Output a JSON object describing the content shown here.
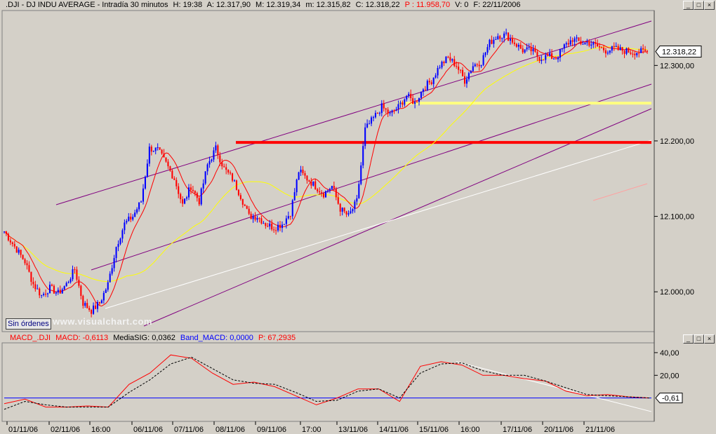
{
  "header": {
    "symbol": ".DJI - DJ INDU AVERAGE - Intradía 30 minutos",
    "h": "H: 19:38",
    "a": "A: 12.317,90",
    "m": "M: 12.319,34",
    "mm": "m: 12.315,82",
    "c": "C: 12.318,22",
    "p": "P : 11.958,70",
    "v": "V: 0",
    "f": "F: 22/11/2006"
  },
  "macd_header": {
    "name": "MACD_.DJI",
    "macd": "MACD: -0,6113",
    "signal": "MediaSIG: 0,0362",
    "band": "Band_MACD: 0,0000",
    "p": "P: 67,2935"
  },
  "window_buttons": [
    "_",
    "□",
    "×"
  ],
  "order_button": "Sin órdenes",
  "watermark": "www.visualchart.com",
  "colors": {
    "background": "#d4d0c8",
    "bull_candle": "#0000ff",
    "bear_candle": "#ff0000",
    "ma_fast": "#ff0000",
    "ma_slow": "#ffff00",
    "channel": "#800080",
    "support": "#ff0000",
    "resistance": "#ffff80",
    "trendline": "#ffffff"
  },
  "chart_data": [
    {
      "type": "line",
      "title": "",
      "series_kind": "candlestick 30 min",
      "ylim": [
        11950,
        12370
      ],
      "y_ticks": [
        12000,
        12100,
        12200,
        12300
      ],
      "y_tick_labels": [
        "12.000,00",
        "12.100,00",
        "12.200,00",
        "12.300,00"
      ],
      "last_price_label": "12.318,22",
      "x_tick_labels": [
        "01/11/06",
        "02/11/06",
        "16:00",
        "06/11/06",
        "07/11/06",
        "08/11/06",
        "09/11/06",
        "17:00",
        "13/11/06",
        "14/11/06",
        "15/11/06",
        "16:00",
        "17/11/06",
        "20/11/06",
        "21/11/06"
      ],
      "close_path": {
        "bar_index": [
          0,
          5,
          10,
          14,
          18,
          22,
          26,
          30,
          34,
          38,
          42,
          46,
          50,
          54,
          58,
          62,
          66,
          70,
          74,
          78,
          82,
          86,
          90,
          94,
          98,
          102,
          106,
          110,
          114,
          118,
          122,
          126,
          130,
          134,
          138,
          142,
          146,
          150,
          154,
          158,
          162,
          166,
          170,
          174,
          178,
          182,
          186,
          190,
          194,
          198,
          202,
          206,
          210,
          214,
          218,
          222,
          226,
          230,
          234,
          238,
          242,
          246,
          250,
          254,
          258,
          262,
          266,
          270,
          274,
          278,
          282,
          286,
          290,
          294,
          298,
          302,
          306,
          310
        ],
        "close": [
          12080,
          12060,
          12040,
          12010,
          11995,
          12005,
          11998,
          12010,
          12030,
          11985,
          11975,
          11985,
          12010,
          12060,
          12090,
          12100,
          12120,
          12190,
          12188,
          12170,
          12150,
          12115,
          12140,
          12120,
          12168,
          12190,
          12163,
          12150,
          12127,
          12100,
          12100,
          12090,
          12085,
          12090,
          12105,
          12160,
          12150,
          12140,
          12130,
          12140,
          12110,
          12100,
          12120,
          12215,
          12230,
          12245,
          12235,
          12245,
          12260,
          12250,
          12270,
          12280,
          12300,
          12310,
          12300,
          12280,
          12300,
          12305,
          12330,
          12340,
          12340,
          12330,
          12320,
          12320,
          12310,
          12312,
          12310,
          12325,
          12335,
          12330,
          12330,
          12325,
          12320,
          12322,
          12320,
          12318,
          12318,
          12318
        ]
      },
      "horizontal_lines": [
        {
          "name": "support",
          "value": 12198,
          "color": "#ff0000"
        },
        {
          "name": "resistance",
          "value": 12250,
          "color": "#ffff80"
        }
      ]
    },
    {
      "type": "line",
      "title": "",
      "series_kind": "MACD",
      "ylim": [
        -20,
        48
      ],
      "y_ticks": [
        40,
        20
      ],
      "y_tick_labels": [
        "40,00",
        "20,00"
      ],
      "last_value_label": "-0,61",
      "zero_line_color": "#0000ff",
      "series": [
        {
          "name": "MACD",
          "color": "#ff0000",
          "x": [
            0,
            10,
            20,
            30,
            40,
            50,
            60,
            70,
            80,
            90,
            100,
            110,
            120,
            130,
            140,
            150,
            160,
            170,
            180,
            190,
            200,
            210,
            220,
            230,
            240,
            250,
            260,
            270,
            280,
            290,
            300,
            310
          ],
          "values": [
            -5,
            -1,
            -8,
            -8,
            -7,
            -8,
            12,
            22,
            38,
            35,
            22,
            12,
            14,
            10,
            2,
            -6,
            0,
            8,
            8,
            -3,
            28,
            32,
            29,
            20,
            20,
            17,
            15,
            6,
            2,
            3,
            1,
            0
          ]
        },
        {
          "name": "MediaSIG",
          "color": "#000000",
          "x": [
            0,
            10,
            20,
            30,
            40,
            50,
            60,
            70,
            80,
            90,
            100,
            110,
            120,
            130,
            140,
            150,
            160,
            170,
            180,
            190,
            200,
            210,
            220,
            230,
            240,
            250,
            260,
            270,
            280,
            290,
            300,
            310
          ],
          "values": [
            -10,
            -3,
            -6,
            -8,
            -8,
            -8,
            5,
            16,
            30,
            36,
            26,
            16,
            13,
            12,
            5,
            -3,
            -2,
            6,
            8,
            0,
            22,
            30,
            31,
            24,
            20,
            20,
            15,
            9,
            3,
            2,
            1,
            0
          ]
        }
      ]
    }
  ]
}
